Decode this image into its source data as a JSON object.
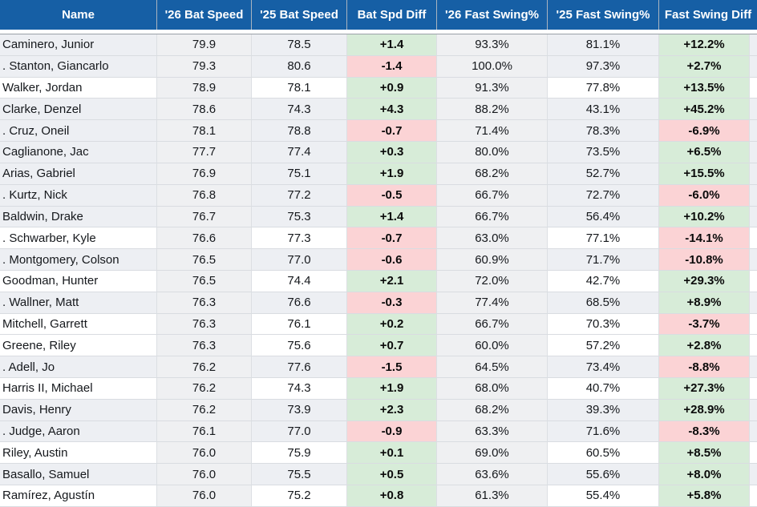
{
  "table": {
    "columns": [
      {
        "key": "name",
        "label": "Name"
      },
      {
        "key": "bs26",
        "label": "'26 Bat Speed"
      },
      {
        "key": "bs25",
        "label": "'25 Bat Speed"
      },
      {
        "key": "bsdiff",
        "label": "Bat Spd Diff"
      },
      {
        "key": "fs26",
        "label": "'26 Fast Swing%"
      },
      {
        "key": "fs25",
        "label": "'25 Fast Swing%"
      },
      {
        "key": "fsdiff",
        "label": "Fast Swing Diff"
      }
    ],
    "rows": [
      {
        "name": "Caminero, Junior",
        "bs26": "79.9",
        "bs25": "78.5",
        "bsdiff": "+1.4",
        "fs26": "93.3%",
        "fs25": "81.1%",
        "fsdiff": "+12.2%",
        "white": false
      },
      {
        "name": ". Stanton, Giancarlo",
        "bs26": "79.3",
        "bs25": "80.6",
        "bsdiff": "-1.4",
        "fs26": "100.0%",
        "fs25": "97.3%",
        "fsdiff": "+2.7%",
        "white": false
      },
      {
        "name": "Walker, Jordan",
        "bs26": "78.9",
        "bs25": "78.1",
        "bsdiff": "+0.9",
        "fs26": "91.3%",
        "fs25": "77.8%",
        "fsdiff": "+13.5%",
        "white": true
      },
      {
        "name": "Clarke, Denzel",
        "bs26": "78.6",
        "bs25": "74.3",
        "bsdiff": "+4.3",
        "fs26": "88.2%",
        "fs25": "43.1%",
        "fsdiff": "+45.2%",
        "white": false
      },
      {
        "name": ". Cruz, Oneil",
        "bs26": "78.1",
        "bs25": "78.8",
        "bsdiff": "-0.7",
        "fs26": "71.4%",
        "fs25": "78.3%",
        "fsdiff": "-6.9%",
        "white": false
      },
      {
        "name": "Caglianone, Jac",
        "bs26": "77.7",
        "bs25": "77.4",
        "bsdiff": "+0.3",
        "fs26": "80.0%",
        "fs25": "73.5%",
        "fsdiff": "+6.5%",
        "white": false
      },
      {
        "name": "Arias, Gabriel",
        "bs26": "76.9",
        "bs25": "75.1",
        "bsdiff": "+1.9",
        "fs26": "68.2%",
        "fs25": "52.7%",
        "fsdiff": "+15.5%",
        "white": false
      },
      {
        "name": ". Kurtz, Nick",
        "bs26": "76.8",
        "bs25": "77.2",
        "bsdiff": "-0.5",
        "fs26": "66.7%",
        "fs25": "72.7%",
        "fsdiff": "-6.0%",
        "white": false
      },
      {
        "name": "Baldwin, Drake",
        "bs26": "76.7",
        "bs25": "75.3",
        "bsdiff": "+1.4",
        "fs26": "66.7%",
        "fs25": "56.4%",
        "fsdiff": "+10.2%",
        "white": false
      },
      {
        "name": ". Schwarber, Kyle",
        "bs26": "76.6",
        "bs25": "77.3",
        "bsdiff": "-0.7",
        "fs26": "63.0%",
        "fs25": "77.1%",
        "fsdiff": "-14.1%",
        "white": true
      },
      {
        "name": ". Montgomery, Colson",
        "bs26": "76.5",
        "bs25": "77.0",
        "bsdiff": "-0.6",
        "fs26": "60.9%",
        "fs25": "71.7%",
        "fsdiff": "-10.8%",
        "white": false
      },
      {
        "name": "Goodman, Hunter",
        "bs26": "76.5",
        "bs25": "74.4",
        "bsdiff": "+2.1",
        "fs26": "72.0%",
        "fs25": "42.7%",
        "fsdiff": "+29.3%",
        "white": true
      },
      {
        "name": ". Wallner, Matt",
        "bs26": "76.3",
        "bs25": "76.6",
        "bsdiff": "-0.3",
        "fs26": "77.4%",
        "fs25": "68.5%",
        "fsdiff": "+8.9%",
        "white": false
      },
      {
        "name": "Mitchell, Garrett",
        "bs26": "76.3",
        "bs25": "76.1",
        "bsdiff": "+0.2",
        "fs26": "66.7%",
        "fs25": "70.3%",
        "fsdiff": "-3.7%",
        "white": true
      },
      {
        "name": "Greene, Riley",
        "bs26": "76.3",
        "bs25": "75.6",
        "bsdiff": "+0.7",
        "fs26": "60.0%",
        "fs25": "57.2%",
        "fsdiff": "+2.8%",
        "white": true
      },
      {
        "name": ". Adell, Jo",
        "bs26": "76.2",
        "bs25": "77.6",
        "bsdiff": "-1.5",
        "fs26": "64.5%",
        "fs25": "73.4%",
        "fsdiff": "-8.8%",
        "white": false
      },
      {
        "name": "Harris II, Michael",
        "bs26": "76.2",
        "bs25": "74.3",
        "bsdiff": "+1.9",
        "fs26": "68.0%",
        "fs25": "40.7%",
        "fsdiff": "+27.3%",
        "white": true
      },
      {
        "name": "Davis, Henry",
        "bs26": "76.2",
        "bs25": "73.9",
        "bsdiff": "+2.3",
        "fs26": "68.2%",
        "fs25": "39.3%",
        "fsdiff": "+28.9%",
        "white": false
      },
      {
        "name": ". Judge, Aaron",
        "bs26": "76.1",
        "bs25": "77.0",
        "bsdiff": "-0.9",
        "fs26": "63.3%",
        "fs25": "71.6%",
        "fsdiff": "-8.3%",
        "white": false
      },
      {
        "name": "Riley, Austin",
        "bs26": "76.0",
        "bs25": "75.9",
        "bsdiff": "+0.1",
        "fs26": "69.0%",
        "fs25": "60.5%",
        "fsdiff": "+8.5%",
        "white": true
      },
      {
        "name": "Basallo, Samuel",
        "bs26": "76.0",
        "bs25": "75.5",
        "bsdiff": "+0.5",
        "fs26": "63.6%",
        "fs25": "55.6%",
        "fsdiff": "+8.0%",
        "white": false
      },
      {
        "name": "Ramírez, Agustín",
        "bs26": "76.0",
        "bs25": "75.2",
        "bsdiff": "+0.8",
        "fs26": "61.3%",
        "fs25": "55.4%",
        "fsdiff": "+5.8%",
        "white": true
      }
    ]
  },
  "colors": {
    "header_bg": "#165fa5",
    "header_text": "#ffffff",
    "positive_bg": "#d7ecd8",
    "negative_bg": "#fbd3d5",
    "row_alt_bg": "#edeff3",
    "row_white_bg": "#ffffff",
    "sorted_col_bg": "#eff0f2",
    "border": "#d9dce1"
  }
}
